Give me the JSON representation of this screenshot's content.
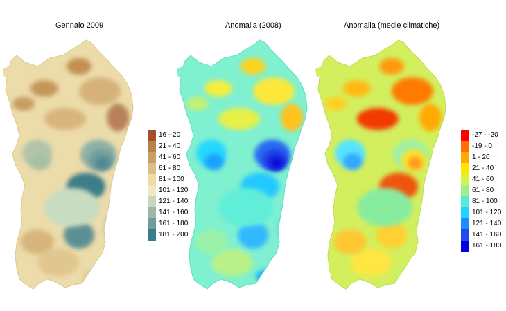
{
  "panels": [
    {
      "title": "Gennaio 2009",
      "base_color": "#ecdcaa",
      "outline_color": "#d8c88f",
      "patches": [
        {
          "color": "#c99c62"
        },
        {
          "color": "#c4965a"
        },
        {
          "color": "#c18f50"
        },
        {
          "color": "#d6b27a"
        },
        {
          "color": "#d9b47c"
        },
        {
          "color": "#b8815a"
        },
        {
          "color": "#b2c4a8"
        },
        {
          "color": "#a7bfa4"
        },
        {
          "color": "#8fb0a5"
        },
        {
          "color": "#6f9c9c"
        },
        {
          "color": "#4f8890"
        },
        {
          "color": "#3d7d87"
        },
        {
          "color": "#5c8f94"
        },
        {
          "color": "#b6c8ad"
        },
        {
          "color": "#e0c68f"
        },
        {
          "color": "#d7b57b"
        },
        {
          "color": "#c7dcc0"
        },
        {
          "color": "#e3cd96"
        }
      ]
    },
    {
      "title": "Anomalia (2008)",
      "base_color": "#7ff0d0",
      "outline_color": "#66dcc0",
      "patches": [
        {
          "color": "#c4f078"
        },
        {
          "color": "#f5ee3c"
        },
        {
          "color": "#ffd21e"
        },
        {
          "color": "#fbe83a"
        },
        {
          "color": "#e8ef4a"
        },
        {
          "color": "#ffc21e"
        },
        {
          "color": "#28d8ff"
        },
        {
          "color": "#1ea0ff"
        },
        {
          "color": "#2a6af0"
        },
        {
          "color": "#1e3ce8"
        },
        {
          "color": "#0a0ad8"
        },
        {
          "color": "#22c8ff"
        },
        {
          "color": "#33b8ff"
        },
        {
          "color": "#4fd6ff"
        },
        {
          "color": "#b8f288"
        },
        {
          "color": "#9af2a8"
        },
        {
          "color": "#60eed8"
        },
        {
          "color": "#1fb4f4"
        }
      ]
    },
    {
      "title": "Anomalia (medie climatiche)",
      "base_color": "#d3ef5e",
      "outline_color": "#bcdc50",
      "patches": [
        {
          "color": "#ffd020"
        },
        {
          "color": "#ffba14"
        },
        {
          "color": "#ff9a0a"
        },
        {
          "color": "#ff7a00"
        },
        {
          "color": "#f23a00"
        },
        {
          "color": "#ffaa00"
        },
        {
          "color": "#58e4ff"
        },
        {
          "color": "#30a8ff"
        },
        {
          "color": "#9ef0a6"
        },
        {
          "color": "#ffe02c"
        },
        {
          "color": "#ff9a1a"
        },
        {
          "color": "#f0540c"
        },
        {
          "color": "#ffd030"
        },
        {
          "color": "#a8ee7a"
        },
        {
          "color": "#ffe640"
        },
        {
          "color": "#ffc830"
        },
        {
          "color": "#88ec9e"
        },
        {
          "color": "#c6f070"
        }
      ]
    }
  ],
  "legends": [
    {
      "items": [
        {
          "label": "16 - 20",
          "color": "#a0522d"
        },
        {
          "label": "21 - 40",
          "color": "#b8804a"
        },
        {
          "label": "41 - 60",
          "color": "#c99f68"
        },
        {
          "label": "61 - 80",
          "color": "#ddbf86"
        },
        {
          "label": "81 - 100",
          "color": "#eedba6"
        },
        {
          "label": "101 - 120",
          "color": "#f2e8c0"
        },
        {
          "label": "121 - 140",
          "color": "#c7d8bd"
        },
        {
          "label": "141 - 160",
          "color": "#9fb8a4"
        },
        {
          "label": "161 - 180",
          "color": "#6f9c9c"
        },
        {
          "label": "181 - 200",
          "color": "#3b7d8a"
        }
      ]
    },
    {
      "items": [
        {
          "label": "-27 - -20",
          "color": "#ff0000"
        },
        {
          "label": "-19 - 0",
          "color": "#ff7000"
        },
        {
          "label": "1 - 20",
          "color": "#ffa800"
        },
        {
          "label": "21 - 40",
          "color": "#ffe600"
        },
        {
          "label": "41 - 60",
          "color": "#d6f542"
        },
        {
          "label": "61 - 80",
          "color": "#9ef08a"
        },
        {
          "label": "81 - 100",
          "color": "#54ecd8"
        },
        {
          "label": "101 - 120",
          "color": "#1fd2ff"
        },
        {
          "label": "121 - 140",
          "color": "#1e8cff"
        },
        {
          "label": "141 - 160",
          "color": "#1e4cf0"
        },
        {
          "label": "161 - 180",
          "color": "#0000e0"
        }
      ]
    }
  ]
}
